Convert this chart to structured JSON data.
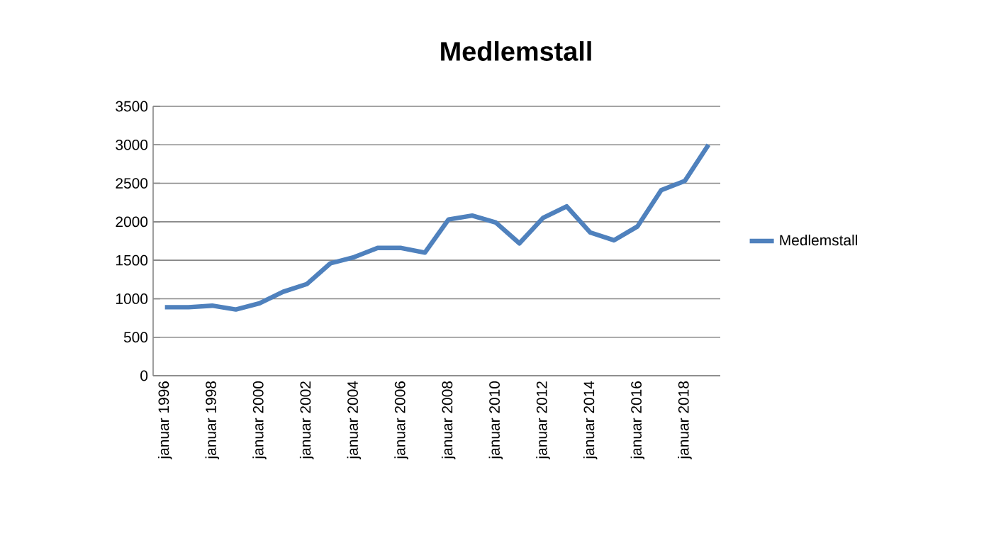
{
  "chart_data": {
    "type": "line",
    "title": "Medlemstall",
    "categories": [
      "januar 1996",
      null,
      "januar 1998",
      null,
      "januar 2000",
      null,
      "januar 2002",
      null,
      "januar 2004",
      null,
      "januar 2006",
      null,
      "januar 2008",
      null,
      "januar 2010",
      null,
      "januar 2012",
      null,
      "januar 2014",
      null,
      "januar 2016",
      null,
      "januar 2018",
      null
    ],
    "series": [
      {
        "name": "Medlemstall",
        "color": "#4f81bd",
        "values": [
          890,
          890,
          910,
          860,
          940,
          1090,
          1190,
          1460,
          1540,
          1660,
          1660,
          1600,
          2030,
          2080,
          1990,
          1720,
          2050,
          2200,
          1860,
          1760,
          1940,
          2410,
          2530,
          3000
        ]
      }
    ],
    "ylim": [
      0,
      3500
    ],
    "yticks": [
      0,
      500,
      1000,
      1500,
      2000,
      2500,
      3000,
      3500
    ],
    "grid": "y",
    "legend": "right",
    "marker": "none",
    "line_style": "solid"
  }
}
